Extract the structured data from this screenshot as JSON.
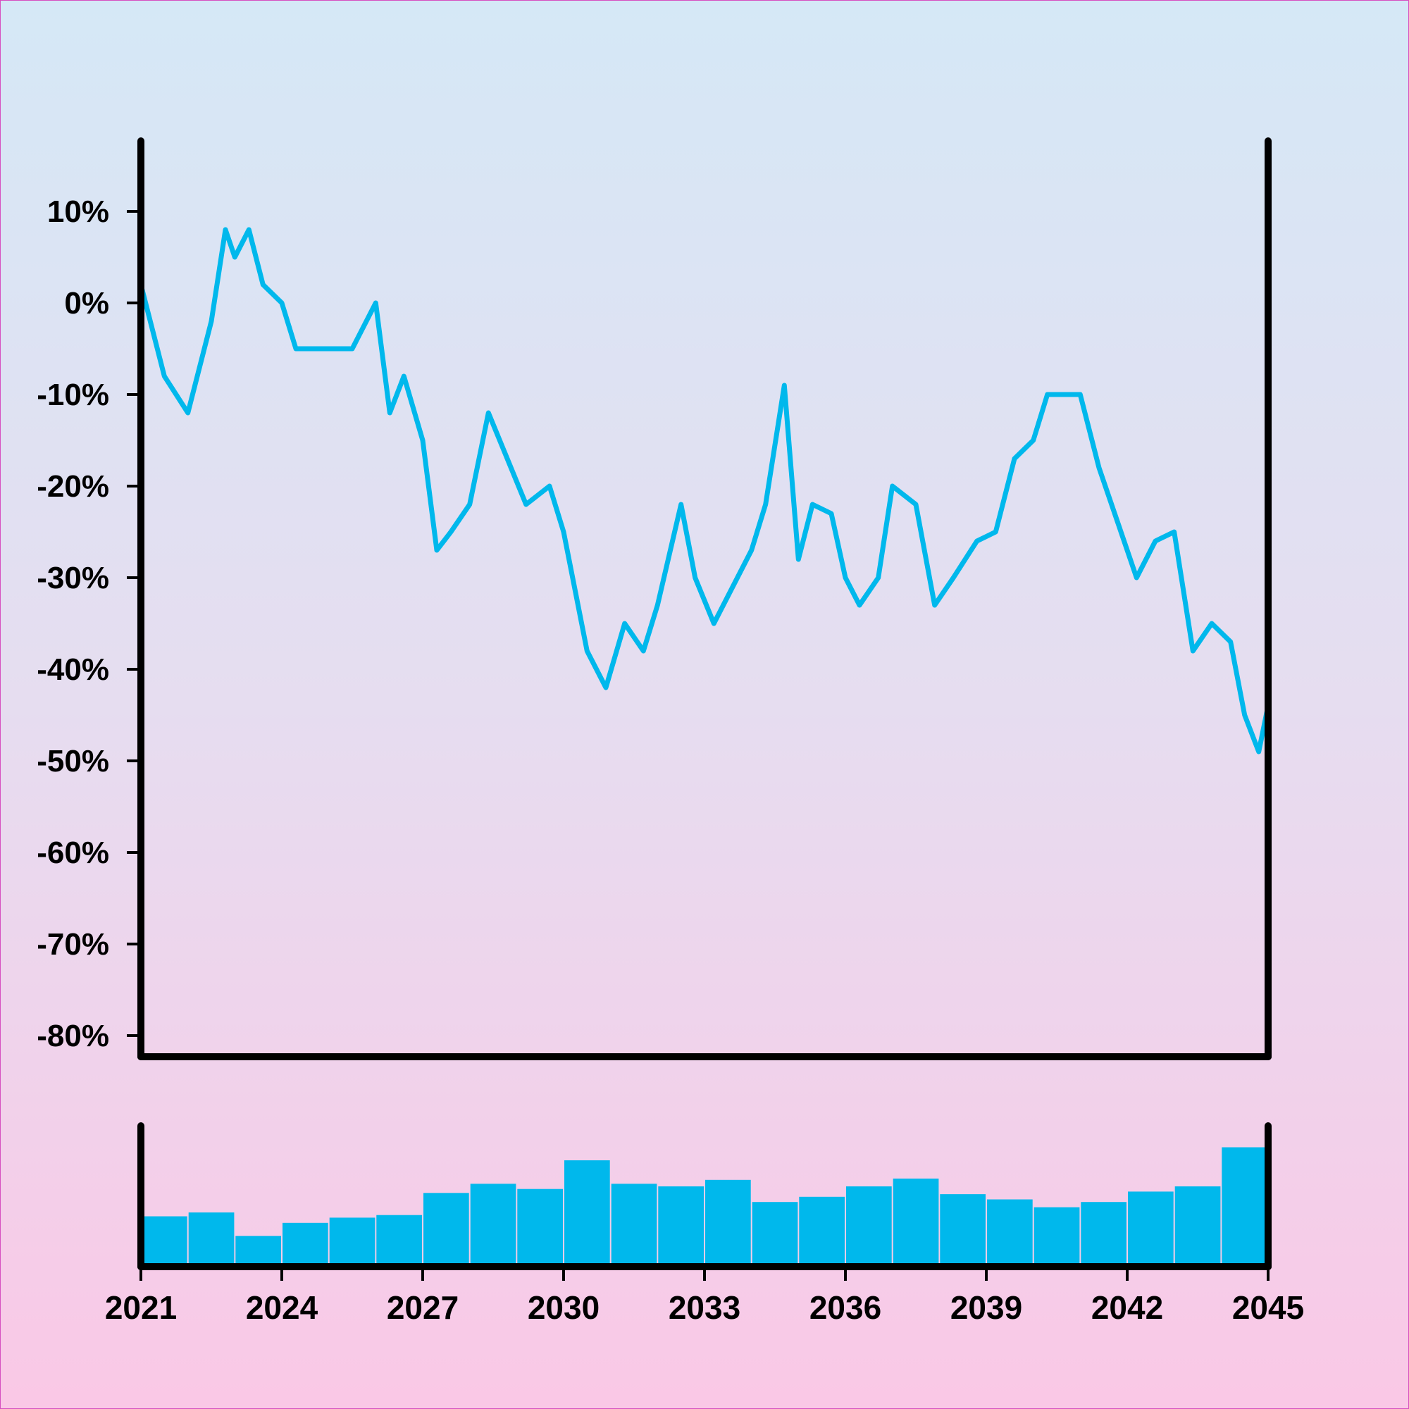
{
  "chart_data": [
    {
      "type": "line",
      "title": "",
      "xlabel": "",
      "ylabel": "",
      "ylim": [
        -80,
        17
      ],
      "y_tick_labels": [
        "10%",
        "0%",
        "-10%",
        "-20%",
        "-30%",
        "-40%",
        "-50%",
        "-60%",
        "-70%",
        "-80%"
      ],
      "y_tick_values": [
        10,
        0,
        -10,
        -20,
        -30,
        -40,
        -50,
        -60,
        -70,
        -80
      ],
      "grid": false,
      "color": "#00b8ec",
      "series": [
        {
          "x": [
            2021.0,
            2021.5,
            2022.0,
            2022.5,
            2022.8,
            2023.0,
            2023.3,
            2023.6,
            2024.0,
            2024.3,
            2024.5,
            2025.0,
            2025.5,
            2026.0,
            2026.3,
            2026.6,
            2027.0,
            2027.3,
            2027.6,
            2028.0,
            2028.4,
            2028.8,
            2029.2,
            2029.7,
            2030.0,
            2030.5,
            2030.9,
            2031.3,
            2031.7,
            2032.0,
            2032.5,
            2032.8,
            2033.2,
            2033.6,
            2034.0,
            2034.3,
            2034.7,
            2035.0,
            2035.3,
            2035.7,
            2036.0,
            2036.3,
            2036.7,
            2037.0,
            2037.5,
            2037.9,
            2038.3,
            2038.8,
            2039.2,
            2039.6,
            2040.0,
            2040.3,
            2040.7,
            2041.0,
            2041.4,
            2041.8,
            2042.2,
            2042.6,
            2043.0,
            2043.4,
            2043.8,
            2044.2,
            2044.5,
            2044.8,
            2045.0
          ],
          "values": [
            2,
            -8,
            -12,
            -2,
            8,
            5,
            8,
            2,
            0,
            -5,
            -5,
            -5,
            -5,
            0,
            -12,
            -8,
            -15,
            -27,
            -25,
            -22,
            -12,
            -17,
            -22,
            -20,
            -25,
            -38,
            -42,
            -35,
            -38,
            -33,
            -22,
            -30,
            -35,
            -31,
            -27,
            -22,
            -9,
            -28,
            -22,
            -23,
            -30,
            -33,
            -30,
            -20,
            -22,
            -33,
            -30,
            -26,
            -25,
            -17,
            -15,
            -10,
            -10,
            -10,
            -18,
            -24,
            -30,
            -26,
            -25,
            -38,
            -35,
            -37,
            -45,
            -49,
            -44
          ]
        }
      ]
    },
    {
      "type": "bar",
      "title": "",
      "xlabel": "",
      "ylabel": "",
      "color": "#00b8ec",
      "x_tick_labels": [
        "2021",
        "2024",
        "2027",
        "2030",
        "2033",
        "2036",
        "2039",
        "2042",
        "2045"
      ],
      "x_tick_values": [
        2021,
        2024,
        2027,
        2030,
        2033,
        2036,
        2039,
        2042,
        2045
      ],
      "xlim": [
        2021,
        2045
      ],
      "ylim": [
        0,
        1
      ],
      "x": [
        2021.5,
        2022.5,
        2023.5,
        2024.5,
        2025.5,
        2026.5,
        2027.5,
        2028.5,
        2029.5,
        2030.5,
        2031.5,
        2032.5,
        2033.5,
        2034.5,
        2035.5,
        2036.5,
        2037.5,
        2038.5,
        2039.5,
        2040.5,
        2041.5,
        2042.5,
        2043.5,
        2044.5
      ],
      "values": [
        0.37,
        0.4,
        0.22,
        0.32,
        0.36,
        0.38,
        0.55,
        0.62,
        0.58,
        0.8,
        0.62,
        0.6,
        0.65,
        0.48,
        0.52,
        0.6,
        0.66,
        0.54,
        0.5,
        0.44,
        0.48,
        0.56,
        0.6,
        0.9
      ]
    }
  ]
}
